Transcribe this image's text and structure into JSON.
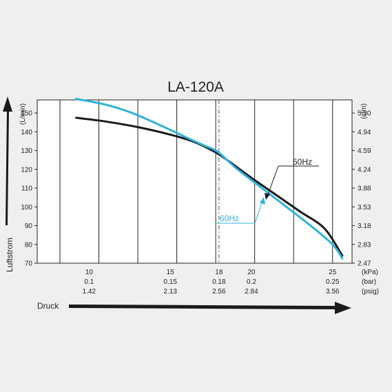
{
  "chart_data": {
    "type": "line",
    "title": "LA-120A",
    "xlabel": "Druck",
    "ylabel": "Luftstrom",
    "left_unit": "(L/min)",
    "right_unit": "(cfm)",
    "xlim": [
      6.8,
      26.2
    ],
    "ylim": [
      70,
      157
    ],
    "grid": true,
    "x_ticks": [
      {
        "value": 10,
        "kpa": "10",
        "bar": "0.1",
        "psig": "1.42"
      },
      {
        "value": 15,
        "kpa": "15",
        "bar": "0.15",
        "psig": "2.13"
      },
      {
        "value": 18,
        "kpa": "18",
        "bar": "0.18",
        "psig": "2.56"
      },
      {
        "value": 20,
        "kpa": "20",
        "bar": "0.2",
        "psig": "2.84"
      },
      {
        "value": 25,
        "kpa": "25",
        "bar": "0.25",
        "psig": "3.56"
      }
    ],
    "x_unit_labels": [
      "(kPa)",
      "(bar)",
      "(psig)"
    ],
    "x_gridlines": [
      8.2,
      10.6,
      13.0,
      15.4,
      17.8,
      20.2,
      22.6,
      25.0
    ],
    "x_dashed_line": 18,
    "y_ticks": [
      "70",
      "80",
      "90",
      "100",
      "110",
      "120",
      "130",
      "140",
      "150"
    ],
    "y_right_ticks": [
      "2.47",
      "2.83",
      "3.18",
      "3.53",
      "3.88",
      "4.24",
      "4.59",
      "4.94",
      "5.30"
    ],
    "series": [
      {
        "name": "50Hz",
        "color": "#1a1a1a",
        "x": [
          9.2,
          11.0,
          13.0,
          15.0,
          16.5,
          17.7,
          18.5,
          20.0,
          21.5,
          23.0,
          24.5,
          25.6
        ],
        "y": [
          147.5,
          145.5,
          142.5,
          138.5,
          134.5,
          129.5,
          125.0,
          115.5,
          106.5,
          97.5,
          88.5,
          74.0
        ]
      },
      {
        "name": "60Hz",
        "color": "#2fb3dc",
        "x": [
          9.2,
          11.0,
          12.5,
          14.0,
          15.5,
          17.0,
          17.9,
          19.0,
          20.5,
          22.0,
          23.5,
          25.0,
          25.6
        ],
        "y": [
          157.5,
          154.5,
          150.5,
          145.0,
          139.0,
          133.0,
          129.5,
          121.0,
          111.0,
          101.0,
          91.0,
          80.0,
          72.5
        ]
      }
    ],
    "annotations": [
      "50Hz",
      "60Hz"
    ]
  }
}
